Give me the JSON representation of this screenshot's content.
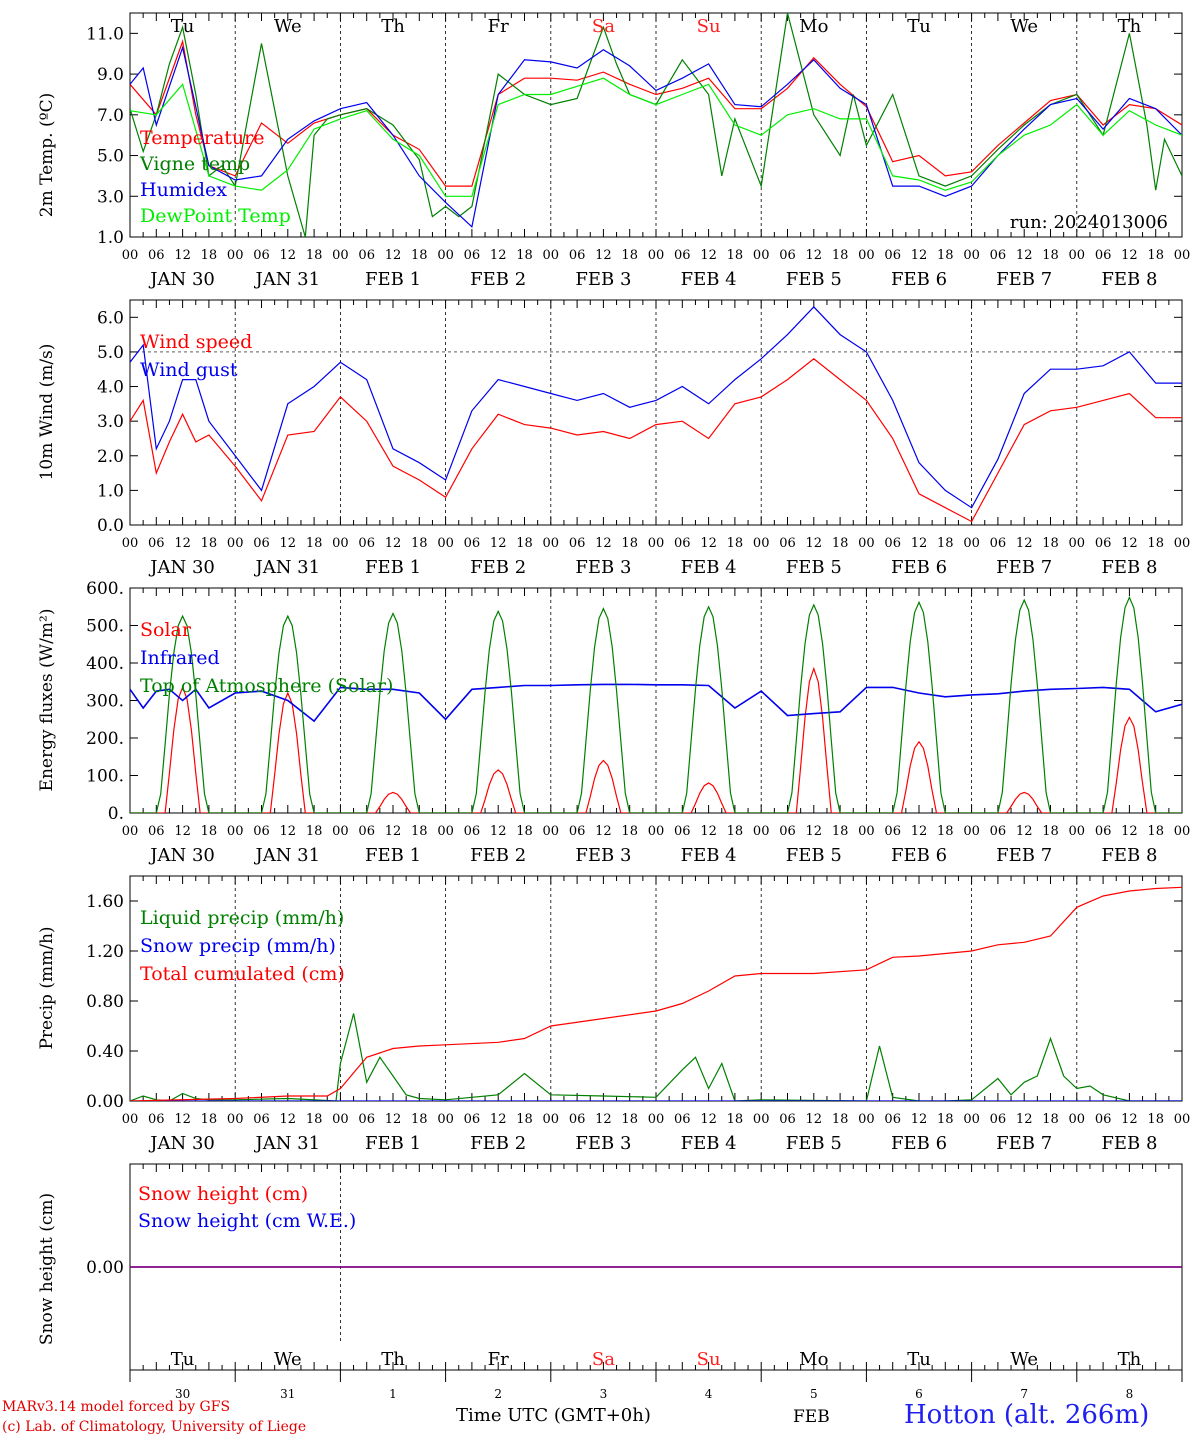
{
  "run_label": "run: 2024013006",
  "footer": {
    "model": "MARv3.14 model forced by GFS",
    "lab": "(c) Lab. of Climatology, University of Liege",
    "time_axis": "Time UTC (GMT+0h)",
    "month": "FEB",
    "station": "Hotton (alt. 266m)"
  },
  "days": {
    "weekdays": [
      "Tu",
      "We",
      "Th",
      "Fr",
      "Sa",
      "Su",
      "Mo",
      "Tu",
      "We",
      "Th"
    ],
    "weekend_color": "#ff2020",
    "weekend_index": [
      4,
      5
    ],
    "dates": [
      "JAN 30",
      "JAN 31",
      "FEB  1",
      "FEB  2",
      "FEB  3",
      "FEB  4",
      "FEB  5",
      "FEB  6",
      "FEB  7",
      "FEB  8"
    ],
    "day_numbers": [
      "30",
      "31",
      "1",
      "2",
      "3",
      "4",
      "5",
      "6",
      "7",
      "8"
    ],
    "hour_ticks": [
      "00",
      "06",
      "12",
      "18"
    ]
  },
  "chart_data": [
    {
      "type": "line",
      "panel": "temperature",
      "ylabel": "2m Temp. (ºC)",
      "ylim": [
        1.0,
        12.0
      ],
      "yticks": [
        "1.0",
        "3.0",
        "5.0",
        "7.0",
        "9.0",
        "11.0"
      ],
      "x_unit": "hours since 2024-01-30 00 UTC",
      "xlim": [
        0,
        240
      ],
      "series": [
        {
          "name": "Temperature",
          "color": "#ff0000",
          "x": [
            0,
            6,
            12,
            15,
            18,
            24,
            30,
            36,
            42,
            48,
            54,
            60,
            66,
            72,
            78,
            84,
            90,
            96,
            102,
            108,
            114,
            120,
            126,
            132,
            138,
            144,
            150,
            156,
            162,
            168,
            174,
            180,
            186,
            192,
            198,
            204,
            210,
            216,
            222,
            228,
            234,
            240
          ],
          "y": [
            8.5,
            7.0,
            10.6,
            7.0,
            4.5,
            4.0,
            6.6,
            5.6,
            6.6,
            7.0,
            7.3,
            6.0,
            5.3,
            3.5,
            3.5,
            8.0,
            8.8,
            8.8,
            8.7,
            9.1,
            8.5,
            8.0,
            8.3,
            8.8,
            7.3,
            7.3,
            8.3,
            9.8,
            8.5,
            7.4,
            4.7,
            5.0,
            4.0,
            4.2,
            5.5,
            6.6,
            7.7,
            8.0,
            6.5,
            7.5,
            7.3,
            6.5
          ]
        },
        {
          "name": "Vigne temp",
          "color": "#008000",
          "x": [
            0,
            3,
            6,
            9,
            12,
            15,
            18,
            21,
            24,
            30,
            36,
            40,
            42,
            45,
            48,
            54,
            60,
            66,
            69,
            72,
            75,
            78,
            84,
            90,
            96,
            102,
            108,
            111,
            114,
            120,
            126,
            132,
            135,
            138,
            144,
            150,
            156,
            162,
            165,
            168,
            174,
            180,
            186,
            192,
            198,
            204,
            210,
            216,
            222,
            228,
            232,
            234,
            236,
            240
          ],
          "y": [
            7.3,
            5.2,
            7.0,
            9.5,
            11.3,
            8.0,
            4.0,
            4.5,
            3.5,
            10.5,
            4.0,
            1.0,
            6.0,
            6.8,
            7.0,
            7.3,
            6.5,
            4.8,
            2.0,
            2.5,
            2.0,
            2.5,
            9.0,
            8.0,
            7.5,
            7.8,
            11.3,
            9.5,
            8.0,
            7.5,
            9.7,
            8.0,
            4.0,
            6.8,
            3.5,
            12.0,
            7.0,
            5.0,
            8.0,
            5.5,
            8.0,
            4.0,
            3.5,
            4.0,
            5.3,
            6.5,
            7.5,
            8.0,
            6.0,
            11.0,
            6.5,
            3.3,
            5.8,
            4.0
          ]
        },
        {
          "name": "Humidex",
          "color": "#0000ee",
          "x": [
            0,
            3,
            6,
            12,
            18,
            24,
            30,
            36,
            42,
            48,
            54,
            60,
            66,
            72,
            78,
            84,
            90,
            96,
            102,
            108,
            114,
            120,
            126,
            132,
            138,
            144,
            150,
            156,
            162,
            168,
            174,
            180,
            186,
            192,
            198,
            204,
            210,
            216,
            222,
            228,
            234,
            240
          ],
          "y": [
            8.5,
            9.3,
            6.5,
            10.3,
            4.5,
            3.8,
            4.0,
            5.8,
            6.7,
            7.3,
            7.6,
            6.0,
            4.0,
            2.7,
            1.5,
            8.0,
            9.7,
            9.6,
            9.3,
            10.2,
            9.4,
            8.2,
            8.8,
            9.5,
            7.5,
            7.4,
            8.5,
            9.7,
            8.3,
            7.5,
            3.5,
            3.5,
            3.0,
            3.5,
            5.0,
            6.3,
            7.5,
            7.8,
            6.3,
            7.8,
            7.3,
            6.0
          ]
        },
        {
          "name": "DewPoint Temp",
          "color": "#00ee00",
          "x": [
            0,
            6,
            12,
            18,
            24,
            30,
            36,
            42,
            48,
            54,
            60,
            66,
            72,
            78,
            84,
            90,
            96,
            102,
            108,
            114,
            120,
            126,
            132,
            138,
            144,
            150,
            156,
            162,
            168,
            174,
            180,
            186,
            192,
            198,
            204,
            210,
            216,
            222,
            228,
            234,
            240
          ],
          "y": [
            7.2,
            7.0,
            8.5,
            4.0,
            3.5,
            3.3,
            4.3,
            6.3,
            6.8,
            7.2,
            5.8,
            5.0,
            3.0,
            3.0,
            7.5,
            8.0,
            8.0,
            8.4,
            8.8,
            8.0,
            7.5,
            8.0,
            8.5,
            6.5,
            6.0,
            7.0,
            7.3,
            6.8,
            6.8,
            4.0,
            3.8,
            3.3,
            3.7,
            5.0,
            6.0,
            6.5,
            7.5,
            6.0,
            7.2,
            6.5,
            6.0
          ]
        }
      ]
    },
    {
      "type": "line",
      "panel": "wind",
      "ylabel": "10m Wind (m/s)",
      "ylim": [
        0.0,
        6.5
      ],
      "yticks": [
        "0.0",
        "1.0",
        "2.0",
        "3.0",
        "4.0",
        "5.0",
        "6.0"
      ],
      "reference_line": 5.0,
      "x_unit": "hours since 2024-01-30 00 UTC",
      "xlim": [
        0,
        240
      ],
      "series": [
        {
          "name": "Wind speed",
          "color": "#ff0000",
          "x": [
            0,
            3,
            6,
            9,
            12,
            15,
            18,
            24,
            30,
            36,
            42,
            48,
            54,
            60,
            66,
            72,
            78,
            84,
            90,
            96,
            102,
            108,
            114,
            120,
            126,
            132,
            138,
            144,
            150,
            156,
            162,
            168,
            174,
            180,
            186,
            192,
            198,
            204,
            210,
            216,
            222,
            228,
            234,
            240
          ],
          "y": [
            3.0,
            3.6,
            1.5,
            2.4,
            3.2,
            2.4,
            2.6,
            1.7,
            0.7,
            2.6,
            2.7,
            3.7,
            3.0,
            1.7,
            1.3,
            0.8,
            2.2,
            3.2,
            2.9,
            2.8,
            2.6,
            2.7,
            2.5,
            2.9,
            3.0,
            2.5,
            3.5,
            3.7,
            4.2,
            4.8,
            4.2,
            3.6,
            2.5,
            0.9,
            0.5,
            0.1,
            1.5,
            2.9,
            3.3,
            3.4,
            3.6,
            3.8,
            3.1,
            3.1
          ]
        },
        {
          "name": "Wind gust",
          "color": "#0000ee",
          "x": [
            0,
            3,
            6,
            9,
            12,
            15,
            18,
            24,
            30,
            36,
            42,
            48,
            54,
            60,
            66,
            72,
            78,
            84,
            90,
            96,
            102,
            108,
            114,
            120,
            126,
            132,
            138,
            144,
            150,
            156,
            162,
            168,
            174,
            180,
            186,
            192,
            198,
            204,
            210,
            216,
            222,
            228,
            234,
            240
          ],
          "y": [
            4.7,
            5.2,
            2.2,
            3.0,
            4.2,
            4.2,
            3.0,
            2.0,
            1.0,
            3.5,
            4.0,
            4.7,
            4.2,
            2.2,
            1.8,
            1.3,
            3.3,
            4.2,
            4.0,
            3.8,
            3.6,
            3.8,
            3.4,
            3.6,
            4.0,
            3.5,
            4.2,
            4.8,
            5.5,
            6.3,
            5.5,
            5.0,
            3.6,
            1.8,
            1.0,
            0.5,
            1.9,
            3.8,
            4.5,
            4.5,
            4.6,
            5.0,
            4.1,
            4.1
          ]
        }
      ]
    },
    {
      "type": "line",
      "panel": "energy",
      "ylabel": "Energy fluxes (W/m²)",
      "ylim": [
        0,
        600
      ],
      "yticks": [
        "0.",
        "100.",
        "200.",
        "300.",
        "400.",
        "500.",
        "600."
      ],
      "x_unit": "hours since 2024-01-30 00 UTC",
      "xlim": [
        0,
        240
      ],
      "series": [
        {
          "name": "Solar",
          "color": "#ff0000",
          "peaks": [
            {
              "hour": 12,
              "value": 335
            },
            {
              "hour": 36,
              "value": 320
            },
            {
              "hour": 60,
              "value": 55
            },
            {
              "hour": 84,
              "value": 115
            },
            {
              "hour": 108,
              "value": 140
            },
            {
              "hour": 132,
              "value": 80
            },
            {
              "hour": 156,
              "value": 385
            },
            {
              "hour": 180,
              "value": 190
            },
            {
              "hour": 204,
              "value": 55
            },
            {
              "hour": 228,
              "value": 255
            }
          ]
        },
        {
          "name": "Infrared",
          "color": "#0000ee",
          "x": [
            0,
            3,
            6,
            9,
            12,
            15,
            18,
            24,
            30,
            36,
            42,
            48,
            54,
            60,
            66,
            72,
            78,
            84,
            90,
            96,
            102,
            108,
            114,
            120,
            126,
            132,
            138,
            144,
            150,
            156,
            162,
            168,
            174,
            180,
            186,
            192,
            198,
            204,
            210,
            216,
            222,
            228,
            234,
            240
          ],
          "y": [
            330,
            280,
            325,
            330,
            300,
            330,
            280,
            320,
            325,
            300,
            245,
            335,
            330,
            330,
            320,
            250,
            330,
            335,
            340,
            340,
            342,
            343,
            343,
            342,
            342,
            340,
            280,
            325,
            260,
            265,
            270,
            335,
            335,
            320,
            310,
            315,
            318,
            325,
            330,
            332,
            335,
            330,
            270,
            290
          ]
        },
        {
          "name": "Top of Atmosphere (Solar)",
          "color": "#008000",
          "peaks": [
            {
              "hour": 12,
              "value": 525
            },
            {
              "hour": 36,
              "value": 525
            },
            {
              "hour": 60,
              "value": 532
            },
            {
              "hour": 84,
              "value": 538
            },
            {
              "hour": 108,
              "value": 545
            },
            {
              "hour": 132,
              "value": 550
            },
            {
              "hour": 156,
              "value": 555
            },
            {
              "hour": 180,
              "value": 562
            },
            {
              "hour": 204,
              "value": 568
            },
            {
              "hour": 228,
              "value": 575
            }
          ]
        }
      ]
    },
    {
      "type": "line",
      "panel": "precip",
      "ylabel": "Precip (mm/h)",
      "ylim": [
        0.0,
        1.8
      ],
      "yticks": [
        "0.00",
        "0.40",
        "0.80",
        "1.20",
        "1.60"
      ],
      "x_unit": "hours since 2024-01-30 00 UTC",
      "xlim": [
        0,
        240
      ],
      "series": [
        {
          "name": "Liquid precip (mm/h)",
          "color": "#008000",
          "x": [
            0,
            3,
            6,
            9,
            12,
            15,
            18,
            24,
            36,
            47,
            48,
            51,
            54,
            57,
            60,
            63,
            66,
            72,
            84,
            90,
            96,
            108,
            120,
            126,
            129,
            132,
            135,
            138,
            144,
            168,
            171,
            174,
            180,
            186,
            192,
            198,
            201,
            204,
            207,
            210,
            213,
            216,
            219,
            222,
            228,
            234,
            240
          ],
          "y": [
            0,
            0.04,
            0.01,
            0,
            0.06,
            0.02,
            0.01,
            0.01,
            0.02,
            0,
            0.3,
            0.7,
            0.15,
            0.35,
            0.2,
            0.05,
            0.02,
            0.01,
            0.05,
            0.22,
            0.05,
            0.04,
            0.03,
            0.25,
            0.35,
            0.1,
            0.3,
            0.0,
            0.01,
            0.0,
            0.44,
            0.03,
            0.0,
            0.0,
            0.01,
            0.18,
            0.05,
            0.15,
            0.2,
            0.5,
            0.2,
            0.1,
            0.12,
            0.05,
            0.0,
            0.0,
            0.0
          ]
        },
        {
          "name": "Snow precip (mm/h)",
          "color": "#0000ee",
          "x": [
            0,
            240
          ],
          "y": [
            0,
            0
          ]
        },
        {
          "name": "Total cumulated (cm)",
          "color": "#ff0000",
          "x": [
            0,
            24,
            36,
            45,
            48,
            54,
            60,
            66,
            72,
            84,
            90,
            96,
            108,
            120,
            126,
            132,
            138,
            144,
            156,
            168,
            174,
            180,
            192,
            198,
            204,
            210,
            216,
            222,
            228,
            234,
            240
          ],
          "y": [
            0.0,
            0.02,
            0.04,
            0.04,
            0.1,
            0.35,
            0.42,
            0.44,
            0.45,
            0.47,
            0.5,
            0.6,
            0.66,
            0.72,
            0.78,
            0.88,
            1.0,
            1.02,
            1.02,
            1.05,
            1.15,
            1.16,
            1.2,
            1.25,
            1.27,
            1.32,
            1.55,
            1.64,
            1.68,
            1.7,
            1.71
          ]
        }
      ]
    },
    {
      "type": "line",
      "panel": "snow",
      "ylabel": "Snow height (cm)",
      "ylim": [
        -1,
        1
      ],
      "yticks": [
        "0.00"
      ],
      "x_unit": "hours since 2024-01-30 00 UTC",
      "xlim": [
        0,
        240
      ],
      "series": [
        {
          "name": "Snow height (cm)",
          "color": "#ff0000",
          "x": [
            0,
            240
          ],
          "y": [
            0,
            0
          ]
        },
        {
          "name": "Snow height (cm W.E.)",
          "color": "#0000ee",
          "x": [
            0,
            240
          ],
          "y": [
            0,
            0
          ]
        }
      ]
    }
  ]
}
